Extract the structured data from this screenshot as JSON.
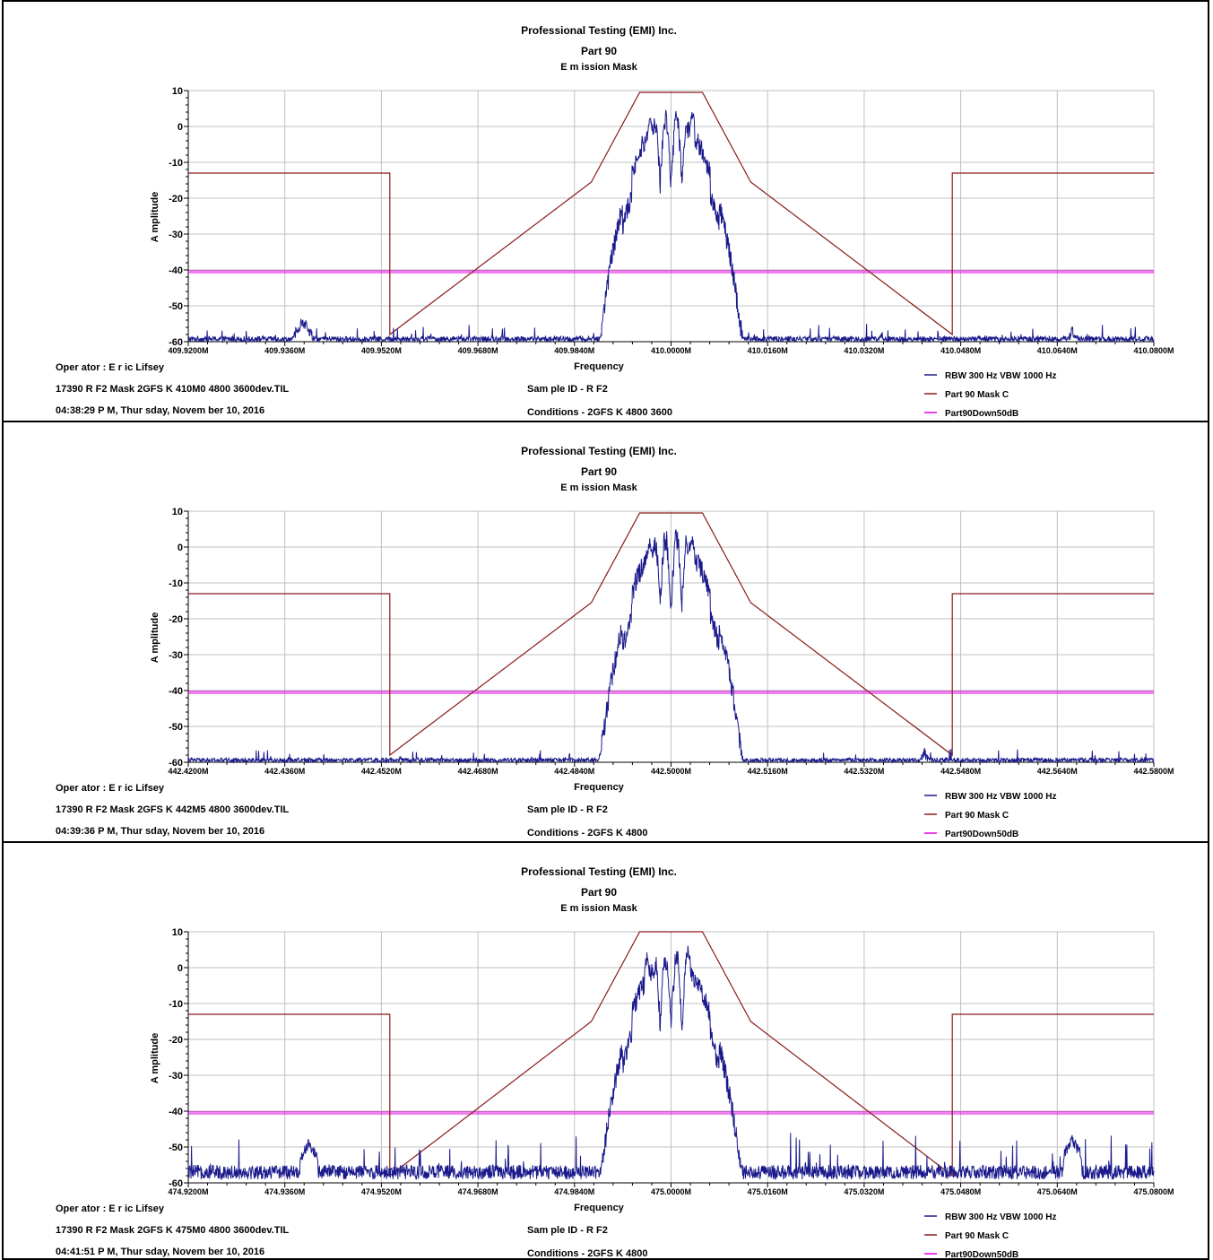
{
  "series_colors": {
    "trace": "#1a1a8c",
    "mask": "#8b1a1a",
    "down50": "#e000e0",
    "grid": "#c0c0c0"
  },
  "chart_data": [
    {
      "type": "line",
      "title": "Professional Testing (EMI) Inc.",
      "subtitle": "Part 90",
      "subtitle2": "E m ission Mask",
      "xlabel": "Frequency",
      "ylabel": "A mplitude",
      "xlim": [
        409.92,
        410.08
      ],
      "ylim": [
        -60,
        10
      ],
      "x_ticks": [
        "409.9200M",
        "409.9360M",
        "409.9520M",
        "409.9680M",
        "409.9840M",
        "410.0000M",
        "410.0160M",
        "410.0320M",
        "410.0480M",
        "410.0640M",
        "410.0800M"
      ],
      "y_ticks": [
        "10",
        "0",
        "-10",
        "-20",
        "-30",
        "-40",
        "-50",
        "-60"
      ],
      "grid": true,
      "center": 410.0,
      "mask": [
        [
          -0.08,
          -13
        ],
        [
          -0.0466,
          -13
        ],
        [
          -0.0466,
          -58
        ],
        [
          -0.0132,
          -15.5
        ],
        [
          -0.0052,
          9.5
        ],
        [
          0.0052,
          9.5
        ],
        [
          0.0132,
          -15.5
        ],
        [
          0.0466,
          -58
        ],
        [
          0.0466,
          -13
        ],
        [
          0.08,
          -13
        ]
      ],
      "down50": -40.5,
      "noise_floor": -60,
      "noise_amp": 1.5,
      "spurs": [
        [
          -0.061,
          -54
        ],
        [
          0.035,
          -58.5
        ],
        [
          0.0665,
          -57
        ]
      ],
      "peaks": [
        [
          -0.0035,
          2
        ],
        [
          0.0035,
          4
        ]
      ],
      "info": {
        "operator": "Oper ator : E r ic Lifsey",
        "file": "17390 R F2 Mask 2GFS K 410M0 4800 3600dev.TIL",
        "timestamp": "04:38:29 P M, Thur sday, Novem ber  10, 2016",
        "sample": "Sam ple ID - R F2",
        "conditions": "Conditions - 2GFS K 4800 3600"
      },
      "legend": [
        "RBW 300 Hz VBW 1000 Hz",
        "Part 90 Mask C",
        "Part90Down50dB"
      ]
    },
    {
      "type": "line",
      "title": "Professional Testing (EMI) Inc.",
      "subtitle": "Part 90",
      "subtitle2": "E m ission Mask",
      "xlabel": "Frequency",
      "ylabel": "A mplitude",
      "xlim": [
        442.42,
        442.58
      ],
      "ylim": [
        -60,
        10
      ],
      "x_ticks": [
        "442.4200M",
        "442.4360M",
        "442.4520M",
        "442.4680M",
        "442.4840M",
        "442.5000M",
        "442.5160M",
        "442.5320M",
        "442.5480M",
        "442.5640M",
        "442.5800M"
      ],
      "y_ticks": [
        "10",
        "0",
        "-10",
        "-20",
        "-30",
        "-40",
        "-50",
        "-60"
      ],
      "grid": true,
      "center": 442.5,
      "mask": [
        [
          -0.08,
          -13
        ],
        [
          -0.0466,
          -13
        ],
        [
          -0.0466,
          -58
        ],
        [
          -0.0132,
          -15.5
        ],
        [
          -0.0052,
          9.5
        ],
        [
          0.0052,
          9.5
        ],
        [
          0.0132,
          -15.5
        ],
        [
          0.0466,
          -58
        ],
        [
          0.0466,
          -13
        ],
        [
          0.08,
          -13
        ]
      ],
      "down50": -40.5,
      "noise_floor": -60,
      "noise_amp": 1.2,
      "spurs": [
        [
          -0.0585,
          -59
        ],
        [
          -0.045,
          -59
        ],
        [
          0.042,
          -57.5
        ]
      ],
      "peaks": [
        [
          -0.0035,
          1.5
        ],
        [
          0.0035,
          2.5
        ]
      ],
      "info": {
        "operator": "Oper ator : E r ic Lifsey",
        "file": "17390 R F2 Mask 2GFS K 442M5 4800 3600dev.TIL",
        "timestamp": "04:39:36 P M, Thur sday, Novem ber  10, 2016",
        "sample": "Sam ple ID - R F2",
        "conditions": "Conditions - 2GFS K 4800"
      },
      "legend": [
        "RBW 300 Hz VBW 1000 Hz",
        "Part 90 Mask C",
        "Part90Down50dB"
      ]
    },
    {
      "type": "line",
      "title": "Professional Testing (EMI) Inc.",
      "subtitle": "Part 90",
      "subtitle2": "E m ission Mask",
      "xlabel": "Frequency",
      "ylabel": "A mplitude",
      "xlim": [
        474.92,
        475.08
      ],
      "ylim": [
        -60,
        10
      ],
      "x_ticks": [
        "474.9200M",
        "474.9360M",
        "474.9520M",
        "474.9680M",
        "474.9840M",
        "475.0000M",
        "475.0160M",
        "475.0320M",
        "475.0480M",
        "475.0640M",
        "475.0800M"
      ],
      "y_ticks": [
        "10",
        "0",
        "-10",
        "-20",
        "-30",
        "-40",
        "-50",
        "-60"
      ],
      "grid": true,
      "center": 475.0,
      "mask": [
        [
          -0.08,
          -13
        ],
        [
          -0.0466,
          -13
        ],
        [
          -0.0466,
          -58
        ],
        [
          -0.0132,
          -15
        ],
        [
          -0.0052,
          10
        ],
        [
          0.0052,
          10
        ],
        [
          0.0132,
          -15
        ],
        [
          0.0466,
          -58
        ],
        [
          0.0466,
          -13
        ],
        [
          0.08,
          -13
        ]
      ],
      "down50": -40.5,
      "noise_floor": -59,
      "noise_amp": 4,
      "spurs": [
        [
          -0.06,
          -49
        ],
        [
          0.0665,
          -48
        ]
      ],
      "peaks": [
        [
          -0.004,
          3
        ],
        [
          0.0028,
          5
        ]
      ],
      "info": {
        "operator": "Oper ator : E r ic Lifsey",
        "file": "17390 R F2 Mask 2GFS K 475M0 4800 3600dev.TIL",
        "timestamp": "04:41:51 P M, Thur sday, Novem ber  10, 2016",
        "sample": "Sam ple ID - R F2",
        "conditions": "Conditions - 2GFS K 4800"
      },
      "legend": [
        "RBW 300 Hz VBW 1000 Hz",
        "Part 90 Mask C",
        "Part90Down50dB"
      ]
    }
  ]
}
